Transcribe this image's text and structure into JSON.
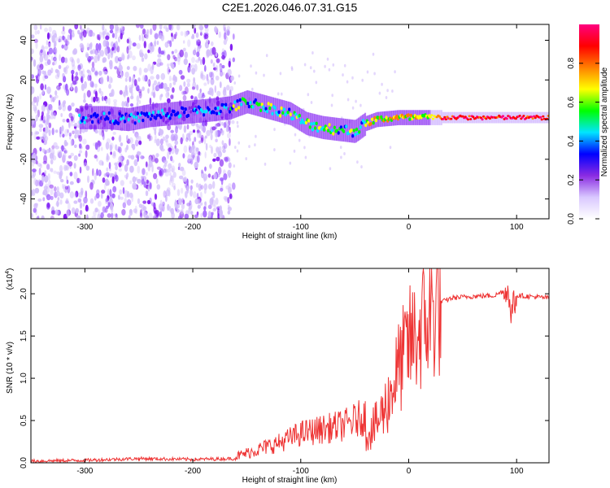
{
  "title": "C2E1.2026.046.07.31.G15",
  "chart_data": [
    {
      "type": "heatmap",
      "name": "spectrogram",
      "xlabel": "Height of straight line (km)",
      "ylabel": "Frequency (Hz)",
      "xlim": [
        -350,
        130
      ],
      "ylim": [
        -50,
        48
      ],
      "xticks": [
        -300,
        -200,
        -100,
        0,
        100
      ],
      "yticks": [
        -40,
        -20,
        0,
        20,
        40
      ],
      "ytick_labels": [
        "-40",
        "-20",
        "0",
        "20",
        "40"
      ],
      "colorbar": {
        "label": "Normalized spectral amplitude",
        "range": [
          0,
          1
        ],
        "ticks": [
          0.0,
          0.2,
          0.4,
          0.6,
          0.8
        ],
        "tick_labels": [
          "0.0",
          "0.2",
          "0.4",
          "0.6",
          "0.8"
        ],
        "colors": [
          "#ffffff",
          "#d9c8ff",
          "#8a2be2",
          "#0000ff",
          "#00e5ff",
          "#00ff00",
          "#ffff00",
          "#ff8000",
          "#ff0000",
          "#ff0080"
        ]
      },
      "noise_region_x": [
        -350,
        -162
      ],
      "ridge": [
        {
          "x": -305,
          "f": 1
        },
        {
          "x": -280,
          "f": 1
        },
        {
          "x": -260,
          "f": 0
        },
        {
          "x": -240,
          "f": 2
        },
        {
          "x": -220,
          "f": 3
        },
        {
          "x": -200,
          "f": 4
        },
        {
          "x": -180,
          "f": 5
        },
        {
          "x": -165,
          "f": 6
        },
        {
          "x": -150,
          "f": 9
        },
        {
          "x": -130,
          "f": 6
        },
        {
          "x": -110,
          "f": 3
        },
        {
          "x": -95,
          "f": -2
        },
        {
          "x": -80,
          "f": -4
        },
        {
          "x": -65,
          "f": -5
        },
        {
          "x": -50,
          "f": -6
        },
        {
          "x": -40,
          "f": -2
        },
        {
          "x": -30,
          "f": 0
        },
        {
          "x": -10,
          "f": 1
        },
        {
          "x": 0,
          "f": 1
        },
        {
          "x": 20,
          "f": 1
        },
        {
          "x": 40,
          "f": 1
        },
        {
          "x": 60,
          "f": 1
        },
        {
          "x": 80,
          "f": 1
        },
        {
          "x": 100,
          "f": 1
        },
        {
          "x": 130,
          "f": 1
        }
      ]
    },
    {
      "type": "line",
      "name": "snr",
      "xlabel": "Height of straight line (km)",
      "ylabel": "SNR (10 * v/v)",
      "multiplier": "(x10",
      "multiplier_exp": "4",
      "multiplier_close": ")",
      "xlim": [
        -350,
        130
      ],
      "ylim": [
        0,
        2.3
      ],
      "xticks": [
        -300,
        -200,
        -100,
        0,
        100
      ],
      "yticks": [
        0,
        0.5,
        1.0,
        1.5,
        2.0
      ],
      "ytick_labels": [
        "0.0",
        "0.5",
        "1.0",
        "1.5",
        "2.0"
      ],
      "series": [
        {
          "name": "SNR",
          "color": "#ee3333",
          "x": [
            -350,
            -300,
            -250,
            -200,
            -160,
            -140,
            -120,
            -100,
            -80,
            -60,
            -40,
            -30,
            -20,
            -10,
            0,
            10,
            20,
            30,
            40,
            60,
            80,
            90,
            95,
            100,
            110,
            120,
            130
          ],
          "y": [
            0.02,
            0.03,
            0.05,
            0.04,
            0.05,
            0.1,
            0.15,
            0.22,
            0.25,
            0.28,
            0.35,
            0.45,
            0.7,
            1.1,
            1.4,
            1.55,
            1.75,
            1.9,
            1.95,
            1.97,
            1.98,
            2.05,
            1.8,
            1.98,
            1.97,
            1.96,
            1.95
          ]
        }
      ]
    }
  ]
}
